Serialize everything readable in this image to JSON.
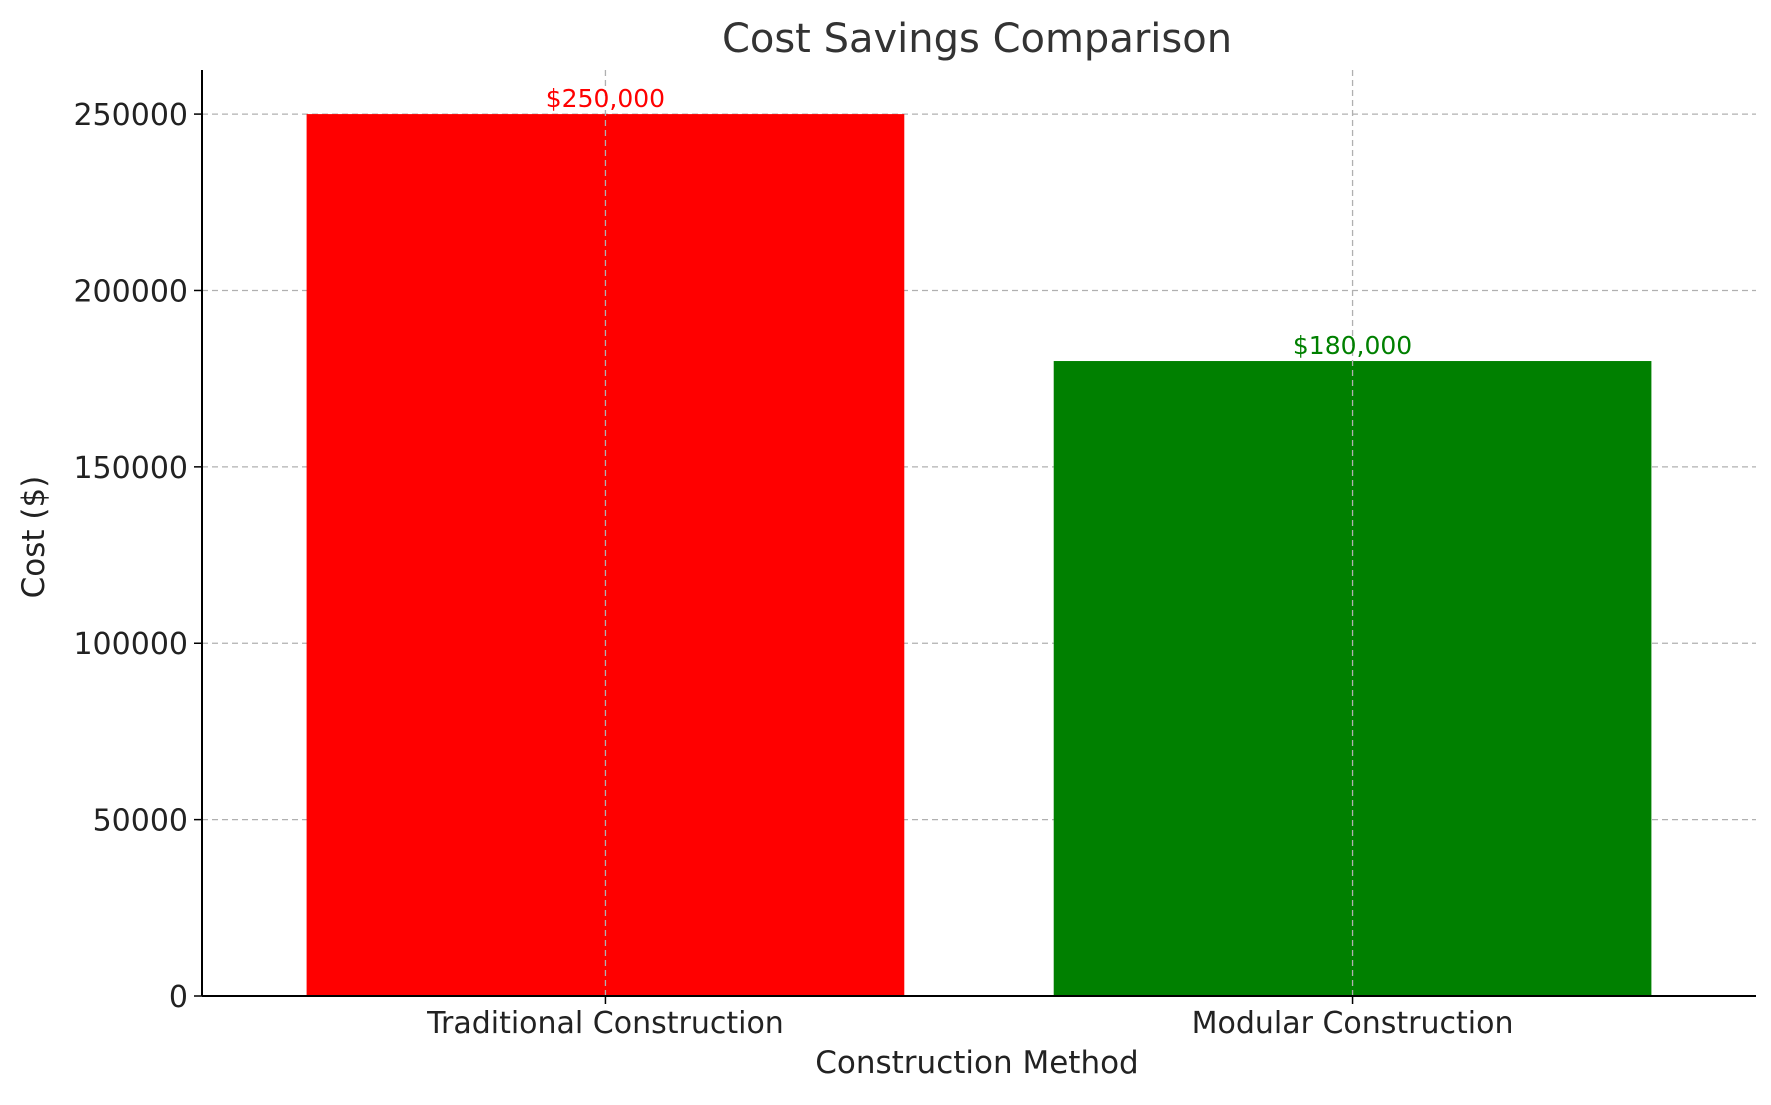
{
  "chart_data": {
    "type": "bar",
    "title": "Cost Savings Comparison",
    "xlabel": "Construction Method",
    "ylabel": "Cost ($)",
    "categories": [
      "Traditional Construction",
      "Modular Construction"
    ],
    "values": [
      250000,
      180000
    ],
    "data_labels": [
      "$250,000",
      "$180,000"
    ],
    "colors": [
      "#ff0000",
      "#008000"
    ],
    "yticks": [
      0,
      50000,
      100000,
      150000,
      200000,
      250000
    ],
    "ytick_labels": [
      "0",
      "50000",
      "100000",
      "150000",
      "200000",
      "250000"
    ],
    "ylim": [
      0,
      262500
    ],
    "grid": true,
    "legend": false
  }
}
